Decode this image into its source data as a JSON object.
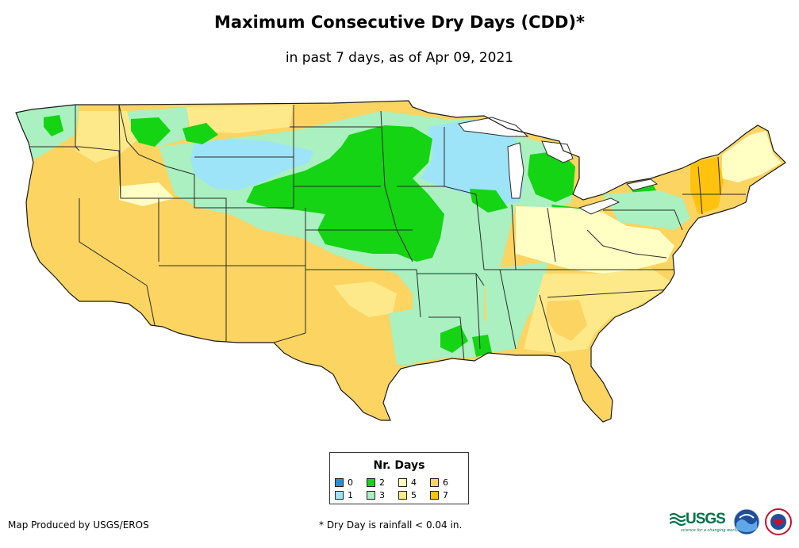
{
  "title": "Maximum Consecutive Dry Days (CDD)*",
  "subtitle": "in past 7 days, as of Apr 09, 2021",
  "legend": {
    "title": "Nr. Days",
    "items": [
      {
        "label": "0",
        "color": "#1e90e0"
      },
      {
        "label": "1",
        "color": "#9ee4f8"
      },
      {
        "label": "2",
        "color": "#14d414"
      },
      {
        "label": "3",
        "color": "#aaf0c0"
      },
      {
        "label": "4",
        "color": "#ffffc4"
      },
      {
        "label": "5",
        "color": "#fde989"
      },
      {
        "label": "6",
        "color": "#fbd462"
      },
      {
        "label": "7",
        "color": "#ffc20e"
      }
    ]
  },
  "credit": "Map Produced by USGS/EROS",
  "footnote": "* Dry Day is rainfall < 0.04 in.",
  "logos": {
    "usgs": "USGS",
    "usgs_tagline": "science for a changing world"
  }
}
